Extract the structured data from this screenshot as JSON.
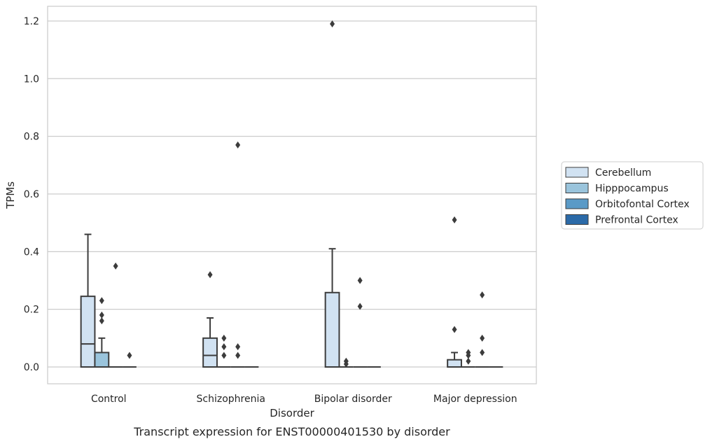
{
  "chart_data": {
    "type": "box",
    "xlabel": "Disorder",
    "ylabel": "TPMs",
    "caption": "Transcript expression for ENST00000401530 by disorder",
    "ylim": [
      -0.058,
      1.25
    ],
    "yticks": [
      0.0,
      0.2,
      0.4,
      0.6,
      0.8,
      1.0,
      1.2
    ],
    "ytick_labels": [
      "0.0",
      "0.2",
      "0.4",
      "0.6",
      "0.8",
      "1.0",
      "1.2"
    ],
    "grid": "horizontal",
    "legend_position": "right",
    "categories": [
      "Control",
      "Schizophrenia",
      "Bipolar disorder",
      "Major depression"
    ],
    "series": [
      {
        "name": "Cerebellum",
        "color": "#d1e2f2",
        "boxes": [
          {
            "q1": 0.0,
            "median": 0.08,
            "q3": 0.245,
            "whisker_low": 0.0,
            "whisker_high": 0.46,
            "outliers": []
          },
          {
            "q1": 0.0,
            "median": 0.04,
            "q3": 0.1,
            "whisker_low": 0.0,
            "whisker_high": 0.17,
            "outliers": [
              0.32
            ]
          },
          {
            "q1": 0.0,
            "median": 0.0,
            "q3": 0.258,
            "whisker_low": 0.0,
            "whisker_high": 0.41,
            "outliers": [
              1.19
            ]
          },
          {
            "q1": 0.0,
            "median": 0.0,
            "q3": 0.025,
            "whisker_low": 0.0,
            "whisker_high": 0.05,
            "outliers": [
              0.13,
              0.51
            ]
          }
        ]
      },
      {
        "name": "Hipppocampus",
        "color": "#9ac4dc",
        "boxes": [
          {
            "q1": 0.0,
            "median": 0.0,
            "q3": 0.05,
            "whisker_low": 0.0,
            "whisker_high": 0.1,
            "outliers": [
              0.16,
              0.18,
              0.23
            ]
          },
          {
            "q1": 0.0,
            "median": 0.0,
            "q3": 0.0,
            "whisker_low": 0.0,
            "whisker_high": 0.0,
            "outliers": [
              0.04,
              0.07,
              0.1
            ]
          },
          {
            "q1": 0.0,
            "median": 0.0,
            "q3": 0.0,
            "whisker_low": 0.0,
            "whisker_high": 0.0,
            "outliers": [
              0.01,
              0.02
            ]
          },
          {
            "q1": 0.0,
            "median": 0.0,
            "q3": 0.0,
            "whisker_low": 0.0,
            "whisker_high": 0.0,
            "outliers": [
              0.02,
              0.04,
              0.05
            ]
          }
        ]
      },
      {
        "name": "Orbitofontal Cortex",
        "color": "#5a9ac7",
        "boxes": [
          {
            "q1": 0.0,
            "median": 0.0,
            "q3": 0.0,
            "whisker_low": 0.0,
            "whisker_high": 0.0,
            "outliers": [
              0.35
            ]
          },
          {
            "q1": 0.0,
            "median": 0.0,
            "q3": 0.0,
            "whisker_low": 0.0,
            "whisker_high": 0.0,
            "outliers": [
              0.04,
              0.07,
              0.77
            ]
          },
          {
            "q1": 0.0,
            "median": 0.0,
            "q3": 0.0,
            "whisker_low": 0.0,
            "whisker_high": 0.0,
            "outliers": [
              0.21,
              0.3
            ]
          },
          {
            "q1": 0.0,
            "median": 0.0,
            "q3": 0.0,
            "whisker_low": 0.0,
            "whisker_high": 0.0,
            "outliers": [
              0.05,
              0.1,
              0.25
            ]
          }
        ]
      },
      {
        "name": "Prefrontal Cortex",
        "color": "#2b6aa8",
        "boxes": [
          {
            "q1": 0.0,
            "median": 0.0,
            "q3": 0.0,
            "whisker_low": 0.0,
            "whisker_high": 0.0,
            "outliers": [
              0.04
            ]
          },
          {
            "q1": 0.0,
            "median": 0.0,
            "q3": 0.0,
            "whisker_low": 0.0,
            "whisker_high": 0.0,
            "outliers": []
          },
          {
            "q1": 0.0,
            "median": 0.0,
            "q3": 0.0,
            "whisker_low": 0.0,
            "whisker_high": 0.0,
            "outliers": []
          },
          {
            "q1": 0.0,
            "median": 0.0,
            "q3": 0.0,
            "whisker_low": 0.0,
            "whisker_high": 0.0,
            "outliers": []
          }
        ]
      }
    ]
  }
}
